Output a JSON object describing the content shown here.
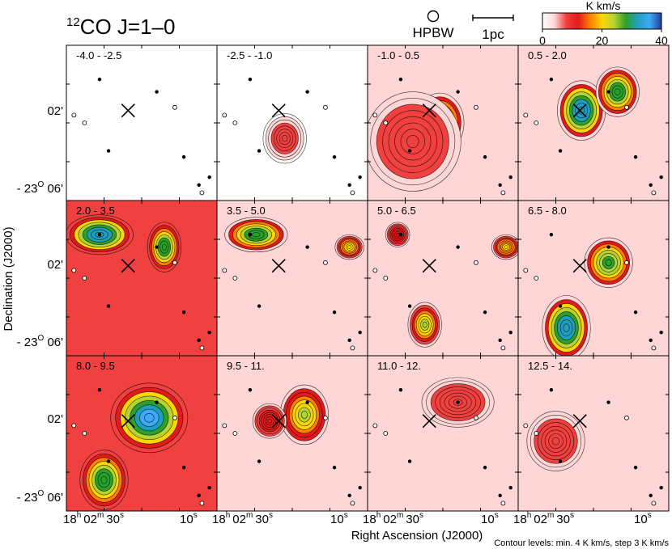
{
  "chart_data": {
    "type": "heatmap",
    "title_prefix": "12",
    "title_main": "CO J=1–0",
    "beam_label": "HPBW",
    "scalebar_label": "1pc",
    "colorbar": {
      "unit": "K km/s",
      "min": 0,
      "max": 40,
      "ticks": [
        0,
        20,
        40
      ],
      "tick_labels": [
        "0",
        "20",
        "40"
      ],
      "colors": [
        "#ffffff",
        "#ffd6d6",
        "#f04040",
        "#e31a1c",
        "#ff7f00",
        "#ffd700",
        "#b5d334",
        "#2ca02c",
        "#1f9fbf",
        "#3fa9f5",
        "#1f3fa0"
      ]
    },
    "xlabel": "Right Ascension (J2000)",
    "ylabel": "Declination (J2000)",
    "x_tick_labels": [
      {
        "h": "18",
        "hs": "h",
        "m": "02",
        "ms": "m",
        "s": "30",
        "ss": "s"
      },
      {
        "s": "10",
        "ss": "s"
      }
    ],
    "y_tick_labels": [
      {
        "text": "02'"
      },
      {
        "prefix": "- 23",
        "sup": "O",
        "suffix": " 06'"
      }
    ],
    "footnote": "Contour levels: min. 4 K km/s,  step  3 K km/s",
    "contour_levels": {
      "min": 4,
      "step": 3,
      "unit": "K km/s"
    },
    "panels": [
      {
        "range": "-4.0 -  -2.5",
        "vmin": -4.0,
        "vmax": -2.5,
        "background": 0,
        "peaks": []
      },
      {
        "range": "-2.5 -  -1.0",
        "vmin": -2.5,
        "vmax": -1.0,
        "background": 2,
        "peaks": [
          {
            "ra": 0.45,
            "dec": 0.6,
            "value": 9,
            "sx": 0.09,
            "sy": 0.1
          }
        ]
      },
      {
        "range": "-1.0 -   0.5",
        "vmin": -1.0,
        "vmax": 0.5,
        "background": 5,
        "peaks": [
          {
            "ra": 0.48,
            "dec": 0.5,
            "value": 30,
            "sx": 0.1,
            "sy": 0.12
          },
          {
            "ra": 0.3,
            "dec": 0.62,
            "value": 8,
            "sx": 0.2,
            "sy": 0.2
          }
        ]
      },
      {
        "range": "0.5 -   2.0",
        "vmin": 0.5,
        "vmax": 2.0,
        "background": 6,
        "peaks": [
          {
            "ra": 0.42,
            "dec": 0.42,
            "value": 34,
            "sx": 0.1,
            "sy": 0.12
          },
          {
            "ra": 0.66,
            "dec": 0.3,
            "value": 30,
            "sx": 0.09,
            "sy": 0.1
          }
        ]
      },
      {
        "range": "2.0 -   3.5",
        "vmin": 2.0,
        "vmax": 3.5,
        "background": 7,
        "peaks": [
          {
            "ra": 0.22,
            "dec": 0.22,
            "value": 34,
            "sx": 0.14,
            "sy": 0.08
          },
          {
            "ra": 0.65,
            "dec": 0.3,
            "value": 30,
            "sx": 0.07,
            "sy": 0.1
          }
        ]
      },
      {
        "range": "3.5 -   5.0",
        "vmin": 3.5,
        "vmax": 5.0,
        "background": 6,
        "peaks": [
          {
            "ra": 0.26,
            "dec": 0.22,
            "value": 30,
            "sx": 0.13,
            "sy": 0.07
          },
          {
            "ra": 0.88,
            "dec": 0.3,
            "value": 22,
            "sx": 0.06,
            "sy": 0.05
          }
        ]
      },
      {
        "range": "5.0 -   6.5",
        "vmin": 5.0,
        "vmax": 6.5,
        "background": 5,
        "peaks": [
          {
            "ra": 0.38,
            "dec": 0.8,
            "value": 24,
            "sx": 0.07,
            "sy": 0.09
          },
          {
            "ra": 0.92,
            "dec": 0.3,
            "value": 20,
            "sx": 0.06,
            "sy": 0.05
          },
          {
            "ra": 0.2,
            "dec": 0.22,
            "value": 14,
            "sx": 0.05,
            "sy": 0.05
          }
        ]
      },
      {
        "range": "6.5 -   8.0",
        "vmin": 6.5,
        "vmax": 8.0,
        "background": 6,
        "peaks": [
          {
            "ra": 0.6,
            "dec": 0.4,
            "value": 28,
            "sx": 0.1,
            "sy": 0.1
          },
          {
            "ra": 0.32,
            "dec": 0.82,
            "value": 34,
            "sx": 0.1,
            "sy": 0.13
          }
        ]
      },
      {
        "range": "8.0 -   9.5",
        "vmin": 8.0,
        "vmax": 9.5,
        "background": 7,
        "peaks": [
          {
            "ra": 0.55,
            "dec": 0.4,
            "value": 36,
            "sx": 0.16,
            "sy": 0.14
          },
          {
            "ra": 0.25,
            "dec": 0.8,
            "value": 30,
            "sx": 0.1,
            "sy": 0.12
          }
        ]
      },
      {
        "range": "9.5 -   11.",
        "vmin": 9.5,
        "vmax": 11.0,
        "background": 6,
        "peaks": [
          {
            "ra": 0.58,
            "dec": 0.38,
            "value": 24,
            "sx": 0.1,
            "sy": 0.12
          },
          {
            "ra": 0.35,
            "dec": 0.42,
            "value": 14,
            "sx": 0.07,
            "sy": 0.07
          }
        ]
      },
      {
        "range": "11.0 -   12.",
        "vmin": 11.0,
        "vmax": 12.5,
        "background": 5,
        "peaks": [
          {
            "ra": 0.6,
            "dec": 0.3,
            "value": 9,
            "sx": 0.15,
            "sy": 0.1
          }
        ]
      },
      {
        "range": "12.5 -   14.",
        "vmin": 12.5,
        "vmax": 14.0,
        "background": 5,
        "peaks": [
          {
            "ra": 0.25,
            "dec": 0.55,
            "value": 9,
            "sx": 0.12,
            "sy": 0.12
          }
        ]
      }
    ],
    "cross_position": {
      "ra": 0.41,
      "dec": 0.42
    },
    "filled_stars": [
      {
        "ra": 0.22,
        "dec": 0.22
      },
      {
        "ra": 0.6,
        "dec": 0.3
      },
      {
        "ra": 0.78,
        "dec": 0.72
      },
      {
        "ra": 0.28,
        "dec": 0.68
      },
      {
        "ra": 0.95,
        "dec": 0.85
      },
      {
        "ra": 0.88,
        "dec": 0.9
      }
    ],
    "open_stars": [
      {
        "ra": 0.12,
        "dec": 0.5
      },
      {
        "ra": 0.72,
        "dec": 0.4
      },
      {
        "ra": 0.05,
        "dec": 0.45
      },
      {
        "ra": 0.9,
        "dec": 0.95
      }
    ]
  }
}
